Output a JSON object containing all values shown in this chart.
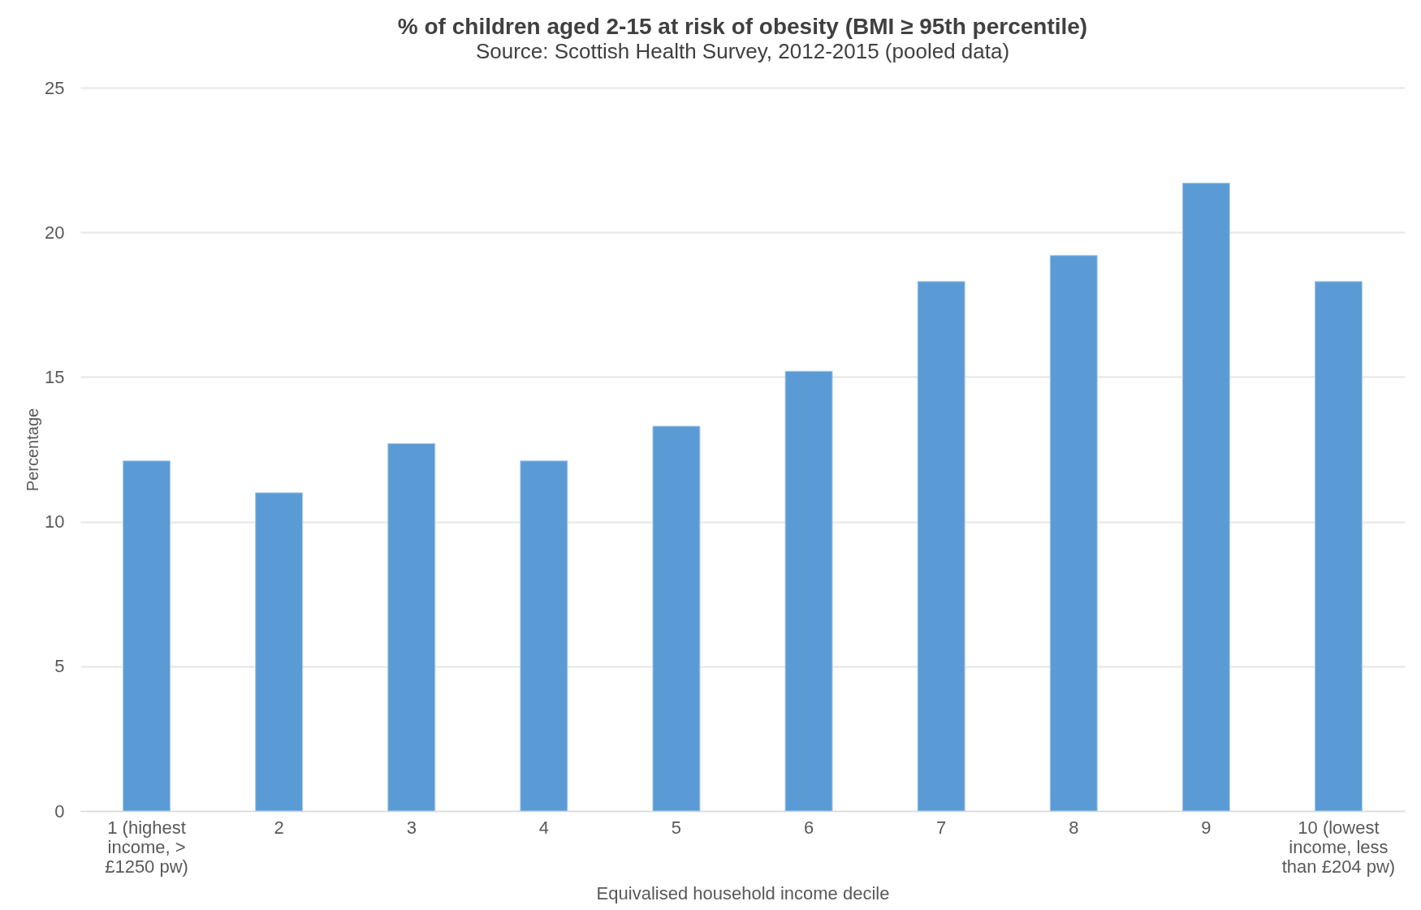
{
  "chart_data": {
    "type": "bar",
    "title": "% of children aged 2-15 at risk of obesity (BMI ≥ 95th percentile)",
    "subtitle": "Source: Scottish Health Survey, 2012-2015 (pooled data)",
    "xlabel": "Equivalised household income decile",
    "ylabel": "Percentage",
    "categories": [
      "1 (highest income, > £1250 pw)",
      "2",
      "3",
      "4",
      "5",
      "6",
      "7",
      "8",
      "9",
      "10 (lowest income, less than £204 pw)"
    ],
    "values": [
      12.1,
      11.0,
      12.7,
      12.1,
      13.3,
      15.2,
      18.3,
      19.2,
      21.7,
      18.3
    ],
    "color": "#5b9bd5",
    "ylim": [
      0,
      25
    ],
    "yticks": [
      0,
      5,
      10,
      15,
      20,
      25
    ],
    "grid": "y"
  }
}
